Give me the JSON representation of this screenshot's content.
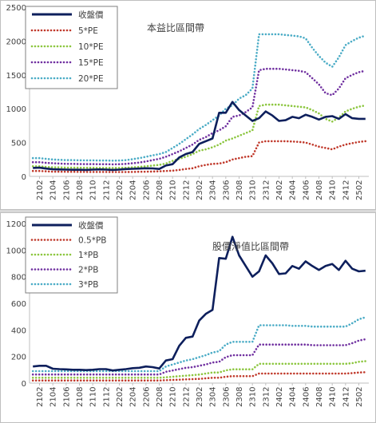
{
  "chart_data": [
    {
      "type": "line",
      "annotation": "本益比區間帶",
      "ylim": [
        0,
        2500
      ],
      "yticks": [
        0,
        500,
        1000,
        1500,
        2000,
        2500
      ],
      "legend_position": "top-left",
      "x": [
        "2101",
        "2102",
        "2103",
        "2104",
        "2105",
        "2106",
        "2107",
        "2108",
        "2109",
        "2110",
        "2111",
        "2112",
        "2201",
        "2202",
        "2203",
        "2204",
        "2205",
        "2206",
        "2207",
        "2208",
        "2209",
        "2210",
        "2211",
        "2212",
        "2301",
        "2302",
        "2303",
        "2304",
        "2305",
        "2306",
        "2307",
        "2308",
        "2309",
        "2310",
        "2311",
        "2312",
        "2401",
        "2402",
        "2403",
        "2404",
        "2405",
        "2406",
        "2407",
        "2408",
        "2409",
        "2410",
        "2411",
        "2412",
        "2501",
        "2502",
        "2503"
      ],
      "x_tick_labels": [
        "2102",
        "2104",
        "2106",
        "2108",
        "2110",
        "2112",
        "2202",
        "2204",
        "2206",
        "2208",
        "2210",
        "2212",
        "2302",
        "2304",
        "2306",
        "2308",
        "2310",
        "2312",
        "2402",
        "2404",
        "2406",
        "2408",
        "2410",
        "2412",
        "2502"
      ],
      "series": [
        {
          "name": "收盤價",
          "color": "#0d1f5c",
          "style": "solid",
          "values": [
            125,
            128,
            115,
            105,
            103,
            100,
            98,
            98,
            96,
            100,
            103,
            100,
            95,
            100,
            108,
            112,
            115,
            120,
            118,
            110,
            160,
            180,
            280,
            330,
            360,
            480,
            520,
            560,
            940,
            940,
            1100,
            980,
            900,
            820,
            860,
            960,
            900,
            820,
            830,
            880,
            860,
            910,
            880,
            840,
            880,
            890,
            850,
            920,
            860,
            850,
            850
          ]
        },
        {
          "name": "5*PE",
          "color": "#c0392b",
          "style": "dotted",
          "values": [
            80,
            80,
            75,
            70,
            70,
            68,
            68,
            67,
            66,
            66,
            66,
            66,
            65,
            65,
            65,
            66,
            68,
            70,
            72,
            75,
            80,
            85,
            95,
            110,
            120,
            150,
            170,
            185,
            190,
            210,
            250,
            270,
            290,
            300,
            500,
            520,
            520,
            520,
            520,
            515,
            510,
            500,
            470,
            440,
            420,
            400,
            440,
            470,
            490,
            510,
            520
          ]
        },
        {
          "name": "10*PE",
          "color": "#8cc63f",
          "style": "dotted",
          "values": [
            150,
            150,
            140,
            135,
            133,
            130,
            130,
            128,
            127,
            127,
            126,
            126,
            125,
            126,
            128,
            135,
            140,
            150,
            160,
            170,
            190,
            230,
            260,
            290,
            330,
            380,
            400,
            430,
            470,
            530,
            560,
            600,
            640,
            680,
            1040,
            1060,
            1060,
            1060,
            1050,
            1040,
            1030,
            1020,
            980,
            930,
            850,
            810,
            870,
            960,
            1000,
            1030,
            1050
          ]
        },
        {
          "name": "15*PE",
          "color": "#7030a0",
          "style": "dotted",
          "values": [
            210,
            210,
            200,
            195,
            190,
            185,
            185,
            183,
            182,
            182,
            180,
            180,
            178,
            180,
            185,
            195,
            205,
            220,
            240,
            260,
            290,
            330,
            370,
            420,
            470,
            540,
            580,
            640,
            680,
            740,
            880,
            900,
            950,
            1020,
            1570,
            1590,
            1590,
            1590,
            1580,
            1570,
            1560,
            1540,
            1450,
            1360,
            1230,
            1200,
            1300,
            1450,
            1500,
            1540,
            1560
          ]
        },
        {
          "name": "20*PE",
          "color": "#4bacc6",
          "style": "dotted",
          "values": [
            270,
            270,
            260,
            250,
            245,
            240,
            240,
            238,
            237,
            237,
            235,
            235,
            232,
            235,
            240,
            255,
            270,
            290,
            310,
            330,
            360,
            420,
            480,
            550,
            620,
            700,
            760,
            830,
            900,
            1000,
            1050,
            1150,
            1200,
            1300,
            2100,
            2100,
            2100,
            2100,
            2090,
            2080,
            2070,
            2040,
            1900,
            1780,
            1680,
            1620,
            1760,
            1940,
            2000,
            2050,
            2080
          ]
        }
      ]
    },
    {
      "type": "line",
      "annotation": "股價淨值比區間帶",
      "ylim": [
        0,
        1200
      ],
      "yticks": [
        0,
        200,
        400,
        600,
        800,
        1000,
        1200
      ],
      "legend_position": "top-left",
      "x": [
        "2101",
        "2102",
        "2103",
        "2104",
        "2105",
        "2106",
        "2107",
        "2108",
        "2109",
        "2110",
        "2111",
        "2112",
        "2201",
        "2202",
        "2203",
        "2204",
        "2205",
        "2206",
        "2207",
        "2208",
        "2209",
        "2210",
        "2211",
        "2212",
        "2301",
        "2302",
        "2303",
        "2304",
        "2305",
        "2306",
        "2307",
        "2308",
        "2309",
        "2310",
        "2311",
        "2312",
        "2401",
        "2402",
        "2403",
        "2404",
        "2405",
        "2406",
        "2407",
        "2408",
        "2409",
        "2410",
        "2411",
        "2412",
        "2501",
        "2502",
        "2503"
      ],
      "x_tick_labels": [
        "2102",
        "2104",
        "2106",
        "2108",
        "2110",
        "2112",
        "2202",
        "2204",
        "2206",
        "2208",
        "2210",
        "2212",
        "2302",
        "2304",
        "2306",
        "2308",
        "2310",
        "2312",
        "2402",
        "2404",
        "2406",
        "2408",
        "2410",
        "2412",
        "2502"
      ],
      "series": [
        {
          "name": "收盤價",
          "color": "#0d1f5c",
          "style": "solid",
          "values": [
            125,
            130,
            130,
            108,
            105,
            103,
            100,
            100,
            98,
            100,
            105,
            105,
            95,
            100,
            105,
            112,
            115,
            125,
            120,
            110,
            170,
            180,
            280,
            340,
            350,
            470,
            520,
            550,
            940,
            935,
            1100,
            960,
            880,
            800,
            840,
            960,
            900,
            820,
            825,
            880,
            860,
            915,
            880,
            850,
            880,
            895,
            850,
            920,
            860,
            840,
            845
          ]
        },
        {
          "name": "0.5*PB",
          "color": "#c0392b",
          "style": "dotted",
          "values": [
            20,
            20,
            20,
            20,
            20,
            20,
            20,
            20,
            20,
            20,
            20,
            20,
            20,
            20,
            20,
            20,
            20,
            20,
            20,
            20,
            22,
            24,
            26,
            28,
            30,
            32,
            36,
            40,
            40,
            48,
            52,
            52,
            52,
            52,
            72,
            72,
            72,
            72,
            72,
            72,
            72,
            72,
            72,
            72,
            72,
            72,
            72,
            72,
            75,
            80,
            82
          ]
        },
        {
          "name": "1*PB",
          "color": "#8cc63f",
          "style": "dotted",
          "values": [
            40,
            40,
            40,
            40,
            40,
            40,
            40,
            40,
            40,
            40,
            40,
            40,
            40,
            40,
            40,
            40,
            40,
            40,
            40,
            40,
            44,
            48,
            52,
            56,
            60,
            64,
            72,
            80,
            80,
            96,
            104,
            104,
            104,
            104,
            145,
            145,
            145,
            145,
            145,
            145,
            145,
            145,
            145,
            145,
            145,
            145,
            145,
            145,
            150,
            160,
            165
          ]
        },
        {
          "name": "2*PB",
          "color": "#7030a0",
          "style": "dotted",
          "values": [
            65,
            65,
            65,
            65,
            65,
            65,
            65,
            65,
            65,
            65,
            65,
            65,
            65,
            65,
            65,
            65,
            65,
            65,
            65,
            65,
            85,
            95,
            105,
            115,
            120,
            130,
            140,
            155,
            160,
            195,
            210,
            210,
            210,
            210,
            290,
            290,
            290,
            290,
            290,
            290,
            290,
            290,
            285,
            285,
            285,
            285,
            285,
            285,
            300,
            320,
            330
          ]
        },
        {
          "name": "3*PB",
          "color": "#4bacc6",
          "style": "dotted",
          "values": [
            90,
            90,
            90,
            90,
            90,
            90,
            90,
            90,
            90,
            90,
            90,
            90,
            90,
            90,
            90,
            90,
            90,
            90,
            90,
            90,
            125,
            140,
            155,
            170,
            180,
            195,
            210,
            230,
            240,
            290,
            310,
            310,
            310,
            310,
            435,
            435,
            435,
            435,
            435,
            430,
            430,
            430,
            425,
            425,
            425,
            425,
            425,
            425,
            450,
            480,
            495
          ]
        }
      ]
    }
  ]
}
